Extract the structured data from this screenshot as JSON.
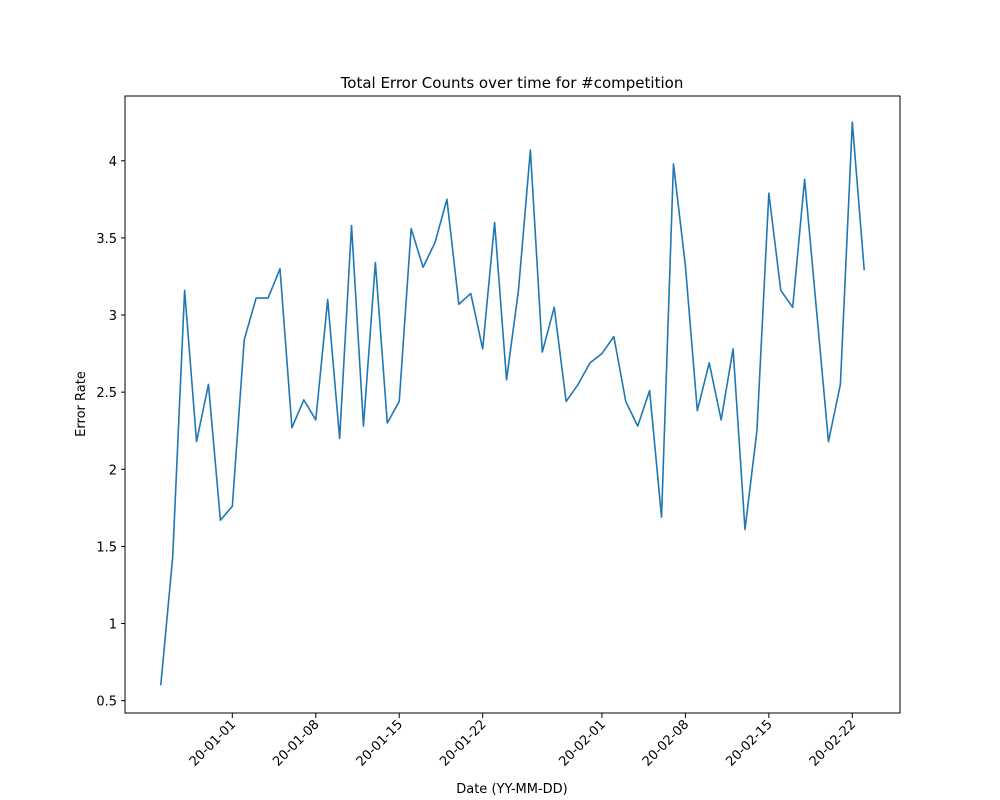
{
  "chart_data": {
    "type": "line",
    "title": "Total Error Counts over time for #competition",
    "x_label": "Date (YY-MM-DD)",
    "y_label": "Error Rate",
    "x": [
      "19-12-26",
      "19-12-27",
      "19-12-28",
      "19-12-29",
      "19-12-30",
      "19-12-31",
      "20-01-01",
      "20-01-02",
      "20-01-03",
      "20-01-04",
      "20-01-05",
      "20-01-06",
      "20-01-07",
      "20-01-08",
      "20-01-09",
      "20-01-10",
      "20-01-11",
      "20-01-12",
      "20-01-13",
      "20-01-14",
      "20-01-15",
      "20-01-16",
      "20-01-17",
      "20-01-18",
      "20-01-19",
      "20-01-20",
      "20-01-21",
      "20-01-22",
      "20-01-23",
      "20-01-24",
      "20-01-25",
      "20-01-26",
      "20-01-27",
      "20-01-28",
      "20-01-29",
      "20-01-30",
      "20-01-31",
      "20-02-01",
      "20-02-02",
      "20-02-03",
      "20-02-04",
      "20-02-05",
      "20-02-06",
      "20-02-07",
      "20-02-08",
      "20-02-09",
      "20-02-10",
      "20-02-11",
      "20-02-12",
      "20-02-13",
      "20-02-14",
      "20-02-15",
      "20-02-16",
      "20-02-17",
      "20-02-18",
      "20-02-19",
      "20-02-20",
      "20-02-21",
      "20-02-22",
      "20-02-23"
    ],
    "series": [
      {
        "name": "Error Rate",
        "color": "#1f77b4",
        "values": [
          0.6,
          1.43,
          3.16,
          2.18,
          2.55,
          1.67,
          1.76,
          2.84,
          3.11,
          3.11,
          3.3,
          2.27,
          2.45,
          2.32,
          3.1,
          2.2,
          3.58,
          2.28,
          3.34,
          2.3,
          2.44,
          3.56,
          3.31,
          3.47,
          3.75,
          3.07,
          3.14,
          2.78,
          3.6,
          2.58,
          3.16,
          4.07,
          2.76,
          3.05,
          2.44,
          2.55,
          2.69,
          2.75,
          2.86,
          2.44,
          2.28,
          2.51,
          1.69,
          3.98,
          3.32,
          2.38,
          2.69,
          2.32,
          2.78,
          1.61,
          2.25,
          3.79,
          3.16,
          3.05,
          3.88,
          3.03,
          2.18,
          2.55,
          4.25,
          3.29
        ]
      }
    ],
    "xlim": [
      "19-12-23",
      "20-02-26"
    ],
    "xticks": [
      "20-01-01",
      "20-01-08",
      "20-01-15",
      "20-01-22",
      "20-02-01",
      "20-02-08",
      "20-02-15",
      "20-02-22"
    ],
    "ylim": [
      0.42,
      4.42
    ],
    "yticks": [
      0.5,
      1.0,
      1.5,
      2.0,
      2.5,
      3.0,
      3.5,
      4.0
    ],
    "grid": false
  }
}
